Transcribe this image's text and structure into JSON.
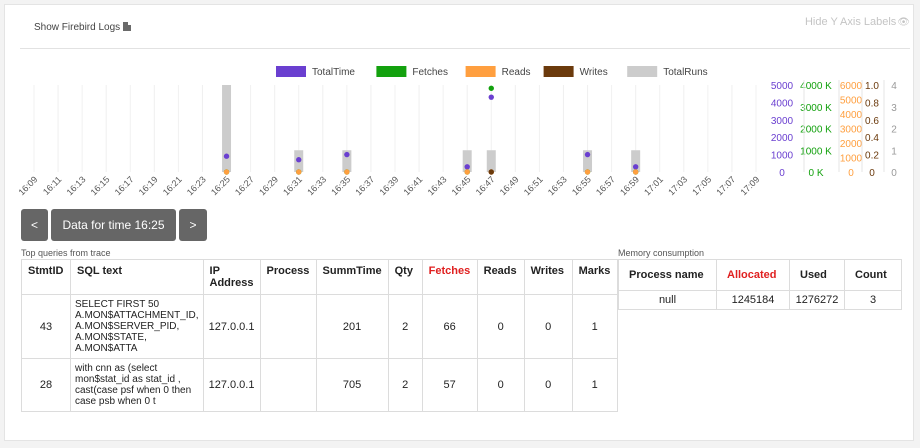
{
  "header": {
    "show_logs_label": "Show Firebird Logs",
    "show_logs_icon": "document-icon",
    "hide_y_label": "Hide Y Axis Labels",
    "hide_y_icon": "eye-icon"
  },
  "legend": [
    {
      "label": "TotalTime",
      "color": "#6a3fd0"
    },
    {
      "label": "Fetches",
      "color": "#13a10e"
    },
    {
      "label": "Reads",
      "color": "#ff9f3f"
    },
    {
      "label": "Writes",
      "color": "#6b3a0c"
    },
    {
      "label": "TotalRuns",
      "color": "#cccccc"
    }
  ],
  "chart_data": {
    "type": "bar",
    "x": [
      "16:09",
      "16:11",
      "16:13",
      "16:15",
      "16:17",
      "16:19",
      "16:21",
      "16:23",
      "16:25",
      "16:27",
      "16:29",
      "16:31",
      "16:33",
      "16:35",
      "16:37",
      "16:39",
      "16:41",
      "16:43",
      "16:45",
      "16:47",
      "16:49",
      "16:51",
      "16:53",
      "16:55",
      "16:57",
      "16:59",
      "17:01",
      "17:03",
      "17:05",
      "17:07",
      "17:09"
    ],
    "series": [
      {
        "name": "TotalRuns",
        "type": "bar",
        "color": "#cccccc",
        "points": [
          {
            "x": "16:25",
            "y": 4
          },
          {
            "x": "16:31",
            "y": 1
          },
          {
            "x": "16:35",
            "y": 1
          },
          {
            "x": "16:45",
            "y": 1
          },
          {
            "x": "16:47",
            "y": 1
          },
          {
            "x": "16:55",
            "y": 1
          },
          {
            "x": "16:59",
            "y": 1
          }
        ]
      },
      {
        "name": "TotalTime",
        "type": "scatter",
        "color": "#6a3fd0",
        "points": [
          {
            "x": "16:25",
            "y": 906
          },
          {
            "x": "16:31",
            "y": 705
          },
          {
            "x": "16:35",
            "y": 1000
          },
          {
            "x": "16:45",
            "y": 300
          },
          {
            "x": "16:47",
            "y": 4300
          },
          {
            "x": "16:55",
            "y": 1000
          },
          {
            "x": "16:59",
            "y": 300
          }
        ]
      },
      {
        "name": "Fetches",
        "type": "scatter",
        "color": "#13a10e",
        "points": [
          {
            "x": "16:25",
            "y": 0
          },
          {
            "x": "16:31",
            "y": 0
          },
          {
            "x": "16:35",
            "y": 0
          },
          {
            "x": "16:45",
            "y": 0
          },
          {
            "x": "16:47",
            "y": 3850000
          },
          {
            "x": "16:55",
            "y": 0
          },
          {
            "x": "16:59",
            "y": 0
          }
        ]
      },
      {
        "name": "Reads",
        "type": "scatter",
        "color": "#ff9f3f",
        "points": [
          {
            "x": "16:25",
            "y": 0
          },
          {
            "x": "16:31",
            "y": 0
          },
          {
            "x": "16:35",
            "y": 0
          },
          {
            "x": "16:45",
            "y": 0
          },
          {
            "x": "16:47",
            "y": 0
          },
          {
            "x": "16:55",
            "y": 0
          },
          {
            "x": "16:59",
            "y": 0
          }
        ]
      },
      {
        "name": "Writes",
        "type": "scatter",
        "color": "#6b3a0c",
        "points": [
          {
            "x": "16:47",
            "y": 0
          }
        ]
      }
    ],
    "axes": [
      {
        "series": "TotalTime",
        "color": "#6a3fd0",
        "max": 5000,
        "ticks": [
          "0",
          "1000",
          "2000",
          "3000",
          "4000",
          "5000"
        ]
      },
      {
        "series": "Fetches",
        "color": "#13a10e",
        "max": 4000000,
        "ticks": [
          "0 K",
          "1000 K",
          "2000 K",
          "3000 K",
          "4000 K"
        ]
      },
      {
        "series": "Reads",
        "color": "#ff9f3f",
        "max": 6000,
        "ticks": [
          "0",
          "1000",
          "2000",
          "3000",
          "4000",
          "5000",
          "6000"
        ]
      },
      {
        "series": "Writes",
        "color": "#6b3a0c",
        "max": 1.0,
        "ticks": [
          "0",
          "0.2",
          "0.4",
          "0.6",
          "0.8",
          "1.0"
        ]
      },
      {
        "series": "TotalRuns",
        "color": "#999999",
        "max": 4,
        "ticks": [
          "0",
          "1",
          "2",
          "3",
          "4"
        ]
      }
    ],
    "legend_position": "top-center",
    "grid": false
  },
  "nav": {
    "prev_label": "<",
    "current_label": "Data for time 16:25",
    "next_label": ">"
  },
  "queries": {
    "caption": "Top queries from trace",
    "columns": [
      "StmtID",
      "SQL text",
      "IP Address",
      "Process",
      "SummTime",
      "Qty",
      "Fetches",
      "Reads",
      "Writes",
      "Marks"
    ],
    "rows": [
      {
        "stmt_id": "43",
        "sql": "SELECT FIRST 50 A.MON$ATTACHMENT_ID, A.MON$SERVER_PID, A.MON$STATE, A.MON$ATTA",
        "ip": "127.0.0.1",
        "process": "",
        "summ_time": "201",
        "qty": "2",
        "fetches": "66",
        "reads": "0",
        "writes": "0",
        "marks": "1"
      },
      {
        "stmt_id": "28",
        "sql": "with cnn as (select mon$stat_id as stat_id , cast(case psf when 0 then case psb when 0 t",
        "ip": "127.0.0.1",
        "process": "",
        "summ_time": "705",
        "qty": "2",
        "fetches": "57",
        "reads": "0",
        "writes": "0",
        "marks": "1"
      }
    ]
  },
  "memory": {
    "caption": "Memory consumption",
    "columns": [
      "Process name",
      "Allocated",
      "Used",
      "Count"
    ],
    "rows": [
      {
        "name": "null",
        "allocated": "1245184",
        "used": "1276272",
        "count": "3"
      }
    ]
  }
}
